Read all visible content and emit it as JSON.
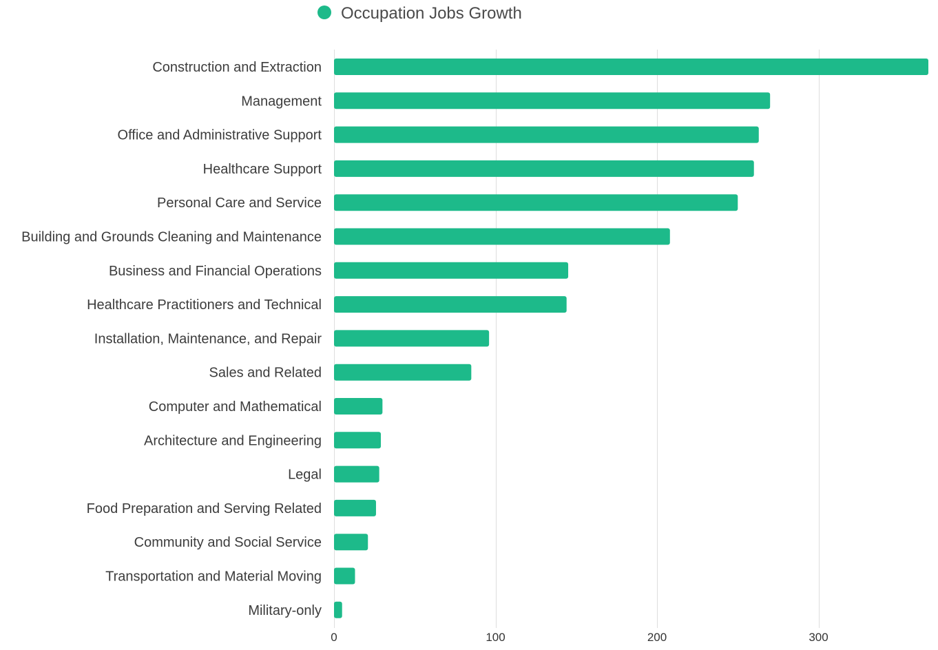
{
  "chart_data": {
    "type": "bar",
    "orientation": "horizontal",
    "legend": {
      "position": "top-center",
      "entries": [
        "Occupation Jobs Growth"
      ]
    },
    "series": [
      {
        "name": "Occupation Jobs Growth",
        "color": "#1dba8a",
        "values": [
          368,
          270,
          263,
          260,
          250,
          208,
          145,
          144,
          96,
          85,
          30,
          29,
          28,
          26,
          21,
          13,
          5
        ]
      }
    ],
    "categories": [
      "Construction and Extraction",
      "Management",
      "Office and Administrative Support",
      "Healthcare Support",
      "Personal Care and Service",
      "Building and Grounds Cleaning and Maintenance",
      "Business and Financial Operations",
      "Healthcare Practitioners and Technical",
      "Installation, Maintenance, and Repair",
      "Sales and Related",
      "Computer and Mathematical",
      "Architecture and Engineering",
      "Legal",
      "Food Preparation and Serving Related",
      "Community and Social Service",
      "Transportation and Material Moving",
      "Military-only"
    ],
    "xlim": [
      0,
      368
    ],
    "xticks": [
      0,
      100,
      200,
      300
    ],
    "xtick_labels": [
      "0",
      "100",
      "200",
      "300"
    ],
    "grid": true
  }
}
